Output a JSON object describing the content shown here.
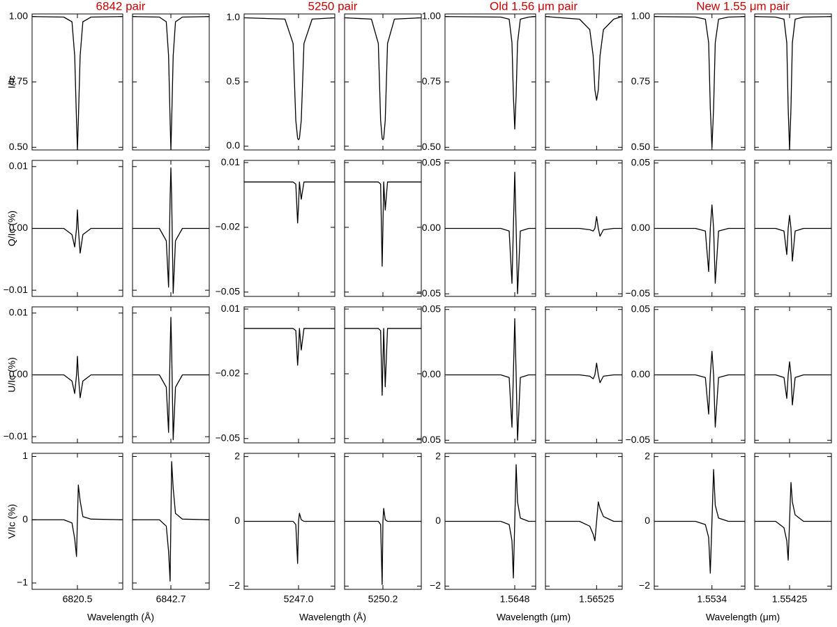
{
  "chart_data": {
    "type": "line",
    "color": "#000000",
    "title_color": "#cc0000",
    "row_labels": [
      "I/Ic",
      "Q/Ic (%)",
      "U/Ic (%)",
      "V/Ic (%)"
    ],
    "groups": [
      {
        "title": "6842 pair",
        "xlabel": "Wavelength (Å)",
        "rows": [
          {
            "ylim": [
              0.49,
              1.01
            ],
            "yticks": [
              {
                "value": 0.5,
                "label": "0.50"
              },
              0.75,
              {
                "value": 1,
                "label": "1.00"
              }
            ]
          },
          {
            "ylim": [
              -0.011,
              0.011
            ],
            "yticks": [
              {
                "value": -0.01,
                "label": "−0.01"
              },
              {
                "value": 0,
                "label": "0.00"
              },
              0.01
            ]
          },
          {
            "ylim": [
              -0.011,
              0.011
            ],
            "yticks": [
              {
                "value": -0.01,
                "label": "−0.01"
              },
              {
                "value": 0,
                "label": "0.00"
              },
              0.01
            ]
          },
          {
            "ylim": [
              -1.1,
              1.05
            ],
            "yticks": [
              {
                "value": -1,
                "label": "−1"
              },
              0,
              1
            ]
          }
        ],
        "columns": [
          {
            "xlim": [
              6820.0,
              6821.0
            ],
            "xticks": [
              6820.5
            ],
            "x": [
              6820.0,
              6820.35,
              6820.44,
              6820.47,
              6820.49,
              6820.5,
              6820.51,
              6820.53,
              6820.56,
              6820.65,
              6821.0
            ],
            "rows": [
              [
                1.0,
                0.998,
                0.98,
                0.85,
                0.6,
                0.49,
                0.6,
                0.85,
                0.98,
                0.998,
                1.0
              ],
              [
                0,
                0,
                -0.001,
                -0.003,
                0.0,
                0.003,
                0.0,
                -0.004,
                -0.001,
                0,
                0
              ],
              [
                0,
                0,
                -0.001,
                -0.003,
                0.0,
                0.003,
                0.0,
                -0.0037,
                -0.001,
                0,
                0
              ],
              [
                0,
                0,
                -0.05,
                -0.3,
                -0.58,
                0,
                0.55,
                0.3,
                0.05,
                0.01,
                0
              ]
            ]
          },
          {
            "xlim": [
              6842.2,
              6843.2
            ],
            "xticks": [
              6842.7
            ],
            "x": [
              6842.2,
              6842.55,
              6842.64,
              6842.67,
              6842.69,
              6842.7,
              6842.71,
              6842.73,
              6842.76,
              6842.85,
              6843.2
            ],
            "rows": [
              [
                1.0,
                0.998,
                0.98,
                0.85,
                0.6,
                0.49,
                0.6,
                0.85,
                0.98,
                0.998,
                1.0
              ],
              [
                0,
                0,
                -0.002,
                -0.0095,
                0.005,
                0.0098,
                0.005,
                -0.0105,
                -0.002,
                0,
                0
              ],
              [
                0,
                0,
                -0.002,
                -0.0093,
                0.004,
                0.0093,
                0.004,
                -0.0105,
                -0.002,
                0,
                0
              ],
              [
                0,
                0,
                -0.1,
                -0.5,
                -0.97,
                0,
                0.92,
                0.5,
                0.1,
                0.01,
                0
              ]
            ]
          }
        ]
      },
      {
        "title": "5250 pair",
        "xlabel": "Wavelength (Å)",
        "rows": [
          {
            "ylim": [
              -0.03,
              1.03
            ],
            "yticks": [
              {
                "value": 0,
                "label": "0.0"
              },
              0.5,
              {
                "value": 1,
                "label": "1.0"
              }
            ]
          },
          {
            "ylim": [
              -0.052,
              0.011
            ],
            "yticks": [
              {
                "value": -0.05,
                "label": "−0.05"
              },
              {
                "value": -0.02,
                "label": "−0.02"
              },
              0.01
            ]
          },
          {
            "ylim": [
              -0.052,
              0.011
            ],
            "yticks": [
              {
                "value": -0.05,
                "label": "−0.05"
              },
              {
                "value": -0.02,
                "label": "−0.02"
              },
              0.01
            ]
          },
          {
            "ylim": [
              -2.1,
              2.1
            ],
            "yticks": [
              {
                "value": -2,
                "label": "−2"
              },
              0,
              2
            ]
          }
        ],
        "columns": [
          {
            "xlim": [
              5246.4,
              5247.4
            ],
            "xticks": [
              {
                "value": 5247.0,
                "label": "5247.0"
              }
            ],
            "x": [
              5246.4,
              5246.85,
              5246.94,
              5246.97,
              5246.99,
              5247.0,
              5247.01,
              5247.03,
              5247.06,
              5247.15,
              5247.4
            ],
            "rows": [
              [
                1.0,
                0.99,
                0.8,
                0.2,
                0.06,
                0.05,
                0.06,
                0.2,
                0.8,
                0.99,
                1.0
              ],
              [
                0.001,
                0.001,
                0.001,
                0.0,
                -0.018,
                -0.01,
                0.001,
                -0.007,
                0.001,
                0.001,
                0.001
              ],
              [
                0.001,
                0.001,
                0.001,
                0.0,
                -0.016,
                -0.009,
                0.001,
                -0.009,
                0.001,
                0.001,
                0.001
              ],
              [
                0,
                0,
                0,
                -0.1,
                -1.3,
                0,
                0.25,
                0.05,
                0,
                0,
                0
              ]
            ]
          },
          {
            "xlim": [
              5249.7,
              5250.7
            ],
            "xticks": [
              5250.2
            ],
            "x": [
              5249.7,
              5250.05,
              5250.14,
              5250.17,
              5250.19,
              5250.2,
              5250.21,
              5250.23,
              5250.26,
              5250.35,
              5250.7
            ],
            "rows": [
              [
                1.0,
                0.99,
                0.8,
                0.2,
                0.06,
                0.05,
                0.06,
                0.2,
                0.8,
                0.99,
                1.0
              ],
              [
                0.001,
                0.001,
                0.001,
                0.0,
                -0.038,
                -0.02,
                0.001,
                -0.012,
                0.001,
                0.001,
                0.001
              ],
              [
                0.001,
                0.001,
                0.001,
                0.0,
                -0.03,
                -0.015,
                0.001,
                -0.026,
                0.001,
                0.001,
                0.001
              ],
              [
                0,
                0,
                0,
                -0.1,
                -1.95,
                0,
                0.4,
                0.05,
                0,
                0,
                0
              ]
            ]
          }
        ]
      },
      {
        "title": "Old 1.56 μm pair",
        "xlabel": "Wavelength (μm)",
        "rows": [
          {
            "ylim": [
              0.49,
              1.01
            ],
            "yticks": [
              {
                "value": 0.5,
                "label": "0.50"
              },
              0.75,
              {
                "value": 1,
                "label": "1.00"
              }
            ]
          },
          {
            "ylim": [
              -0.052,
              0.052
            ],
            "yticks": [
              {
                "value": -0.05,
                "label": "−0.05"
              },
              {
                "value": 0,
                "label": "0.00"
              },
              0.05
            ]
          },
          {
            "ylim": [
              -0.052,
              0.052
            ],
            "yticks": [
              {
                "value": -0.05,
                "label": "−0.05"
              },
              {
                "value": 0,
                "label": "0.00"
              },
              0.05
            ]
          },
          {
            "ylim": [
              -2.1,
              2.1
            ],
            "yticks": [
              {
                "value": -2,
                "label": "−2"
              },
              0,
              2
            ]
          }
        ],
        "columns": [
          {
            "xlim": [
              1.5643,
              1.56495
            ],
            "xticks": [
              1.5648
            ],
            "x": [
              1.5643,
              1.5647,
              1.56476,
              1.56478,
              1.56479,
              1.5648,
              1.56481,
              1.56482,
              1.56484,
              1.5649,
              1.56495
            ],
            "rows": [
              [
                1.0,
                0.998,
                0.99,
                0.9,
                0.7,
                0.57,
                0.7,
                0.9,
                0.99,
                0.998,
                1.0
              ],
              [
                0,
                0,
                -0.002,
                -0.042,
                0.0,
                0.043,
                0.0,
                -0.05,
                -0.002,
                0,
                0
              ],
              [
                0,
                0,
                -0.002,
                -0.04,
                0.0,
                0.043,
                0.0,
                -0.05,
                -0.002,
                0,
                0
              ],
              [
                0,
                0,
                -0.1,
                -0.6,
                -1.75,
                0,
                1.75,
                0.6,
                0.1,
                0,
                0
              ]
            ]
          },
          {
            "xlim": [
              1.56495,
              1.5654
            ],
            "xticks": [
              1.56525
            ],
            "x": [
              1.56495,
              1.56515,
              1.56521,
              1.56523,
              1.56524,
              1.56525,
              1.56526,
              1.56527,
              1.56529,
              1.56535,
              1.5654
            ],
            "rows": [
              [
                1.0,
                0.99,
                0.95,
                0.85,
                0.72,
                0.68,
                0.72,
                0.85,
                0.95,
                0.99,
                1.0
              ],
              [
                0,
                0,
                -0.001,
                -0.002,
                0.0,
                0.009,
                0.0,
                -0.006,
                -0.001,
                0,
                0
              ],
              [
                0,
                0,
                -0.001,
                -0.003,
                0.0,
                0.009,
                0.0,
                -0.006,
                -0.001,
                0,
                0
              ],
              [
                0,
                0,
                -0.15,
                -0.4,
                -0.6,
                0,
                0.6,
                0.4,
                0.15,
                0,
                0
              ]
            ]
          }
        ]
      },
      {
        "title": "New 1.55 μm pair",
        "xlabel": "Wavelength (μm)",
        "rows": [
          {
            "ylim": [
              0.49,
              1.01
            ],
            "yticks": [
              {
                "value": 0.5,
                "label": "0.50"
              },
              0.75,
              {
                "value": 1,
                "label": "1.00"
              }
            ]
          },
          {
            "ylim": [
              -0.052,
              0.052
            ],
            "yticks": [
              {
                "value": -0.05,
                "label": "−0.05"
              },
              {
                "value": 0,
                "label": "0.00"
              },
              0.05
            ]
          },
          {
            "ylim": [
              -0.052,
              0.052
            ],
            "yticks": [
              {
                "value": -0.05,
                "label": "−0.05"
              },
              {
                "value": 0,
                "label": "0.00"
              },
              0.05
            ]
          },
          {
            "ylim": [
              -2.1,
              2.1
            ],
            "yticks": [
              {
                "value": -2,
                "label": "−2"
              },
              0,
              2
            ]
          }
        ],
        "columns": [
          {
            "xlim": [
              1.55305,
              1.5536
            ],
            "xticks": [
              1.5534
            ],
            "x": [
              1.55305,
              1.5533,
              1.55336,
              1.55338,
              1.55339,
              1.5534,
              1.55341,
              1.55342,
              1.55344,
              1.5535,
              1.5536
            ],
            "rows": [
              [
                1.0,
                0.998,
                0.99,
                0.9,
                0.65,
                0.5,
                0.65,
                0.9,
                0.99,
                0.998,
                1.0
              ],
              [
                0,
                0,
                -0.002,
                -0.033,
                0,
                0.018,
                0,
                -0.042,
                -0.002,
                0,
                0
              ],
              [
                0,
                0,
                -0.002,
                -0.03,
                0,
                0.018,
                0,
                -0.04,
                -0.002,
                0,
                0
              ],
              [
                0,
                0,
                -0.1,
                -0.5,
                -1.6,
                0,
                1.6,
                0.5,
                0.1,
                0,
                0
              ]
            ]
          },
          {
            "xlim": [
              1.554,
              1.55455
            ],
            "xticks": [
              1.55425
            ],
            "x": [
              1.554,
              1.55415,
              1.55421,
              1.55423,
              1.55424,
              1.55425,
              1.55426,
              1.55427,
              1.55429,
              1.55435,
              1.55455
            ],
            "rows": [
              [
                1.0,
                0.998,
                0.99,
                0.9,
                0.65,
                0.49,
                0.65,
                0.9,
                0.99,
                0.998,
                1.0
              ],
              [
                0,
                0,
                -0.002,
                -0.02,
                0,
                0.01,
                0,
                -0.025,
                -0.002,
                0,
                0
              ],
              [
                0,
                0,
                -0.002,
                -0.018,
                0,
                0.01,
                0,
                -0.023,
                -0.002,
                0,
                0
              ],
              [
                0,
                0,
                -0.2,
                -0.6,
                -1.2,
                0,
                1.2,
                0.6,
                0.2,
                0,
                0
              ]
            ]
          }
        ]
      }
    ]
  }
}
